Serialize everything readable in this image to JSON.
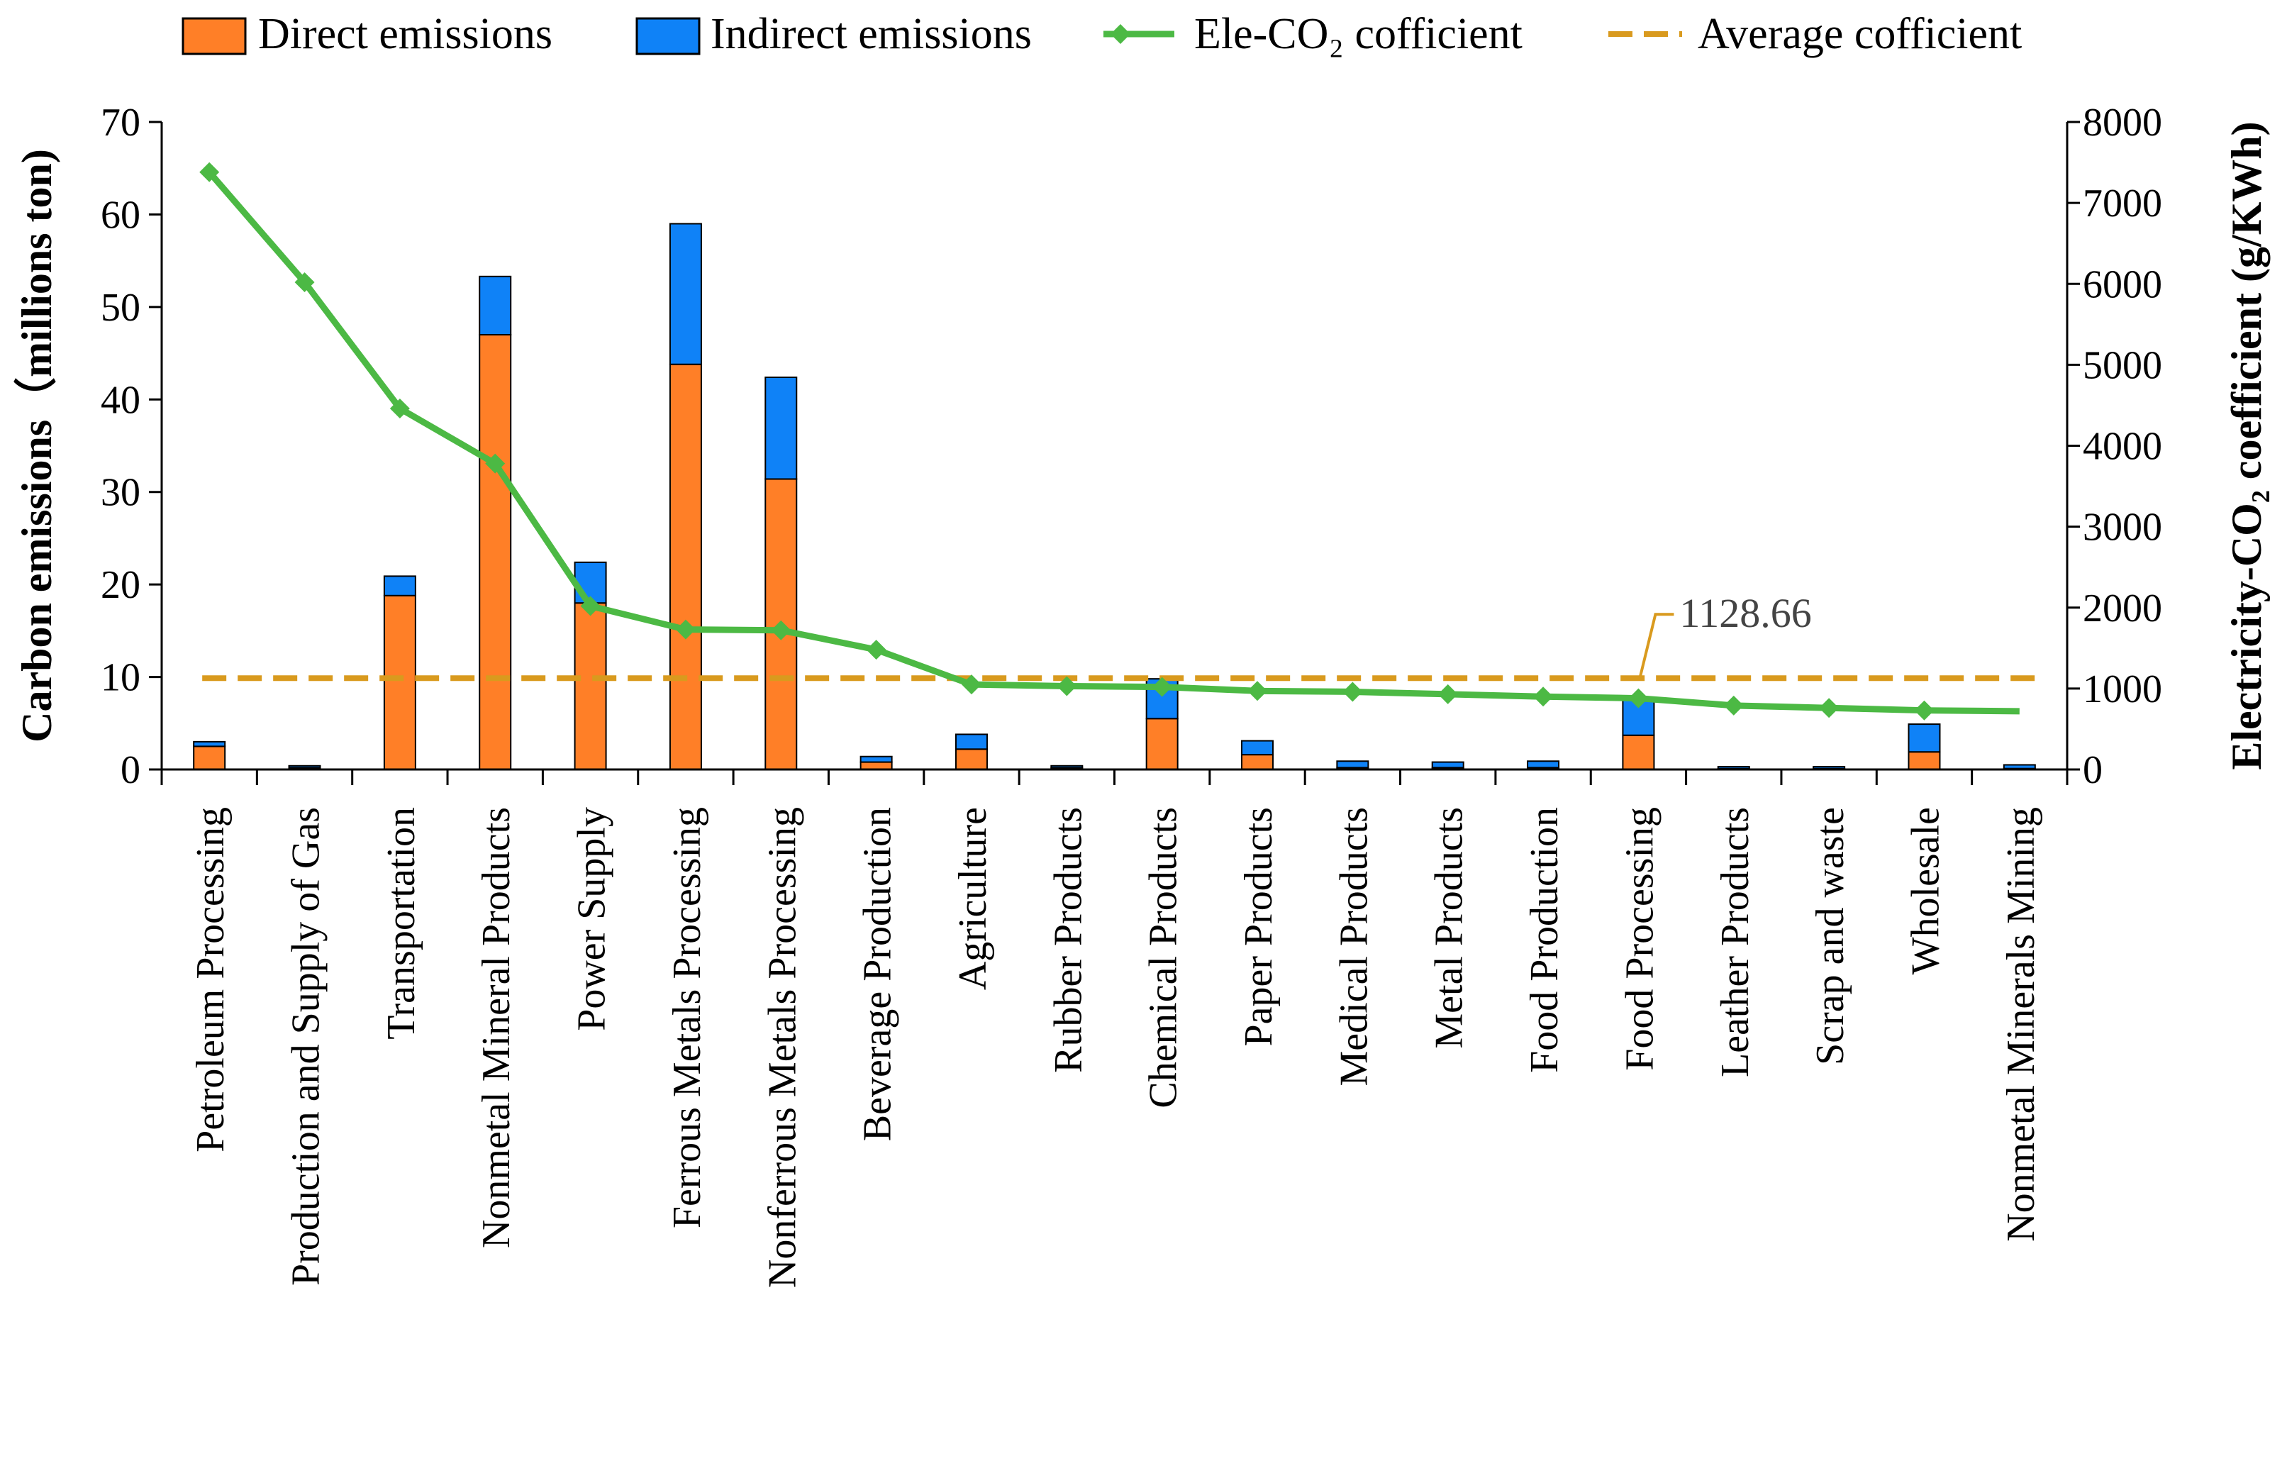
{
  "chart_data": {
    "type": "bar",
    "stacked": true,
    "categories": [
      "Petroleum Processing",
      "Production and Supply of Gas",
      "Transportation",
      "Nonmetal Mineral Products",
      "Power Supply",
      "Ferrous Metals Processing",
      "Nonferrous Metals Processing",
      "Beverage Production",
      "Agriculture",
      "Rubber Products",
      "Chemical Products",
      "Paper Products",
      "Medical Products",
      "Metal Products",
      "Food Production",
      "Food Processing",
      "Leather Products",
      "Scrap and waste",
      "Wholesale",
      "Nonmetal Minerals Mining"
    ],
    "series": [
      {
        "name": "Direct emissions",
        "type": "bar",
        "axis": "left",
        "color": "#FF7F27",
        "values": [
          2.5,
          0.2,
          18.8,
          47.0,
          18.0,
          43.8,
          31.4,
          0.8,
          2.2,
          0.2,
          5.5,
          1.6,
          0.2,
          0.2,
          0.2,
          3.7,
          0.1,
          0.1,
          1.9,
          0.1
        ]
      },
      {
        "name": "Indirect emissions",
        "type": "bar",
        "axis": "left",
        "color": "#0F82F7",
        "values": [
          0.5,
          0.2,
          2.1,
          6.3,
          4.4,
          15.2,
          11.0,
          0.6,
          1.6,
          0.2,
          4.3,
          1.5,
          0.7,
          0.6,
          0.7,
          4.0,
          0.2,
          0.2,
          3.0,
          0.4
        ]
      },
      {
        "name": "Ele-CO₂ cofficient",
        "type": "line",
        "axis": "right",
        "color": "#4CB944",
        "values": [
          7380,
          6020,
          4460,
          3780,
          2020,
          1730,
          1720,
          1480,
          1050,
          1030,
          1020,
          970,
          960,
          930,
          900,
          880,
          790,
          760,
          730,
          720
        ]
      },
      {
        "name": "Average cofficient",
        "type": "line",
        "axis": "right",
        "color": "#D99A1E",
        "dashed": true,
        "value": 1128.66
      }
    ],
    "ylabel": "Carbon emissions（millions ton)",
    "y2label": "Electricity-CO₂ coefficient (g/KWh)",
    "ylim": [
      0,
      70
    ],
    "y2lim": [
      0,
      8000
    ],
    "yticks": [
      "0",
      "10",
      "20",
      "30",
      "40",
      "50",
      "60",
      "70"
    ],
    "y2ticks": [
      "0",
      "1000",
      "2000",
      "3000",
      "4000",
      "5000",
      "6000",
      "7000",
      "8000"
    ],
    "annotation": "1128.66",
    "legend_position": "top",
    "grid": false
  }
}
